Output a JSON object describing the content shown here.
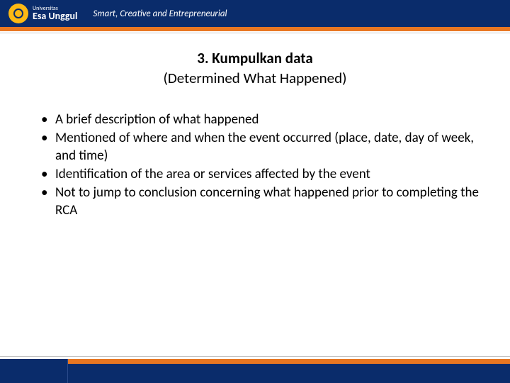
{
  "header": {
    "brand_main": "Esa Unggul",
    "brand_sub": "Universitas",
    "tagline": "Smart, Creative and Entrepreneurial"
  },
  "colors": {
    "header_bg": "#0a2c6b",
    "accent_orange": "#e87722",
    "logo_yellow": "#fdb913",
    "text": "#000000",
    "page_bg": "#ffffff"
  },
  "title": {
    "line1": "3. Kumpulkan data",
    "line2": "(Determined What Happened)"
  },
  "bullets": [
    "A brief description of what happened",
    "Mentioned of where and when the event occurred (place, date, day of week, and time)",
    "Identification of the area or services affected by the event",
    "Not to jump to conclusion concerning what happened prior to completing the RCA"
  ]
}
